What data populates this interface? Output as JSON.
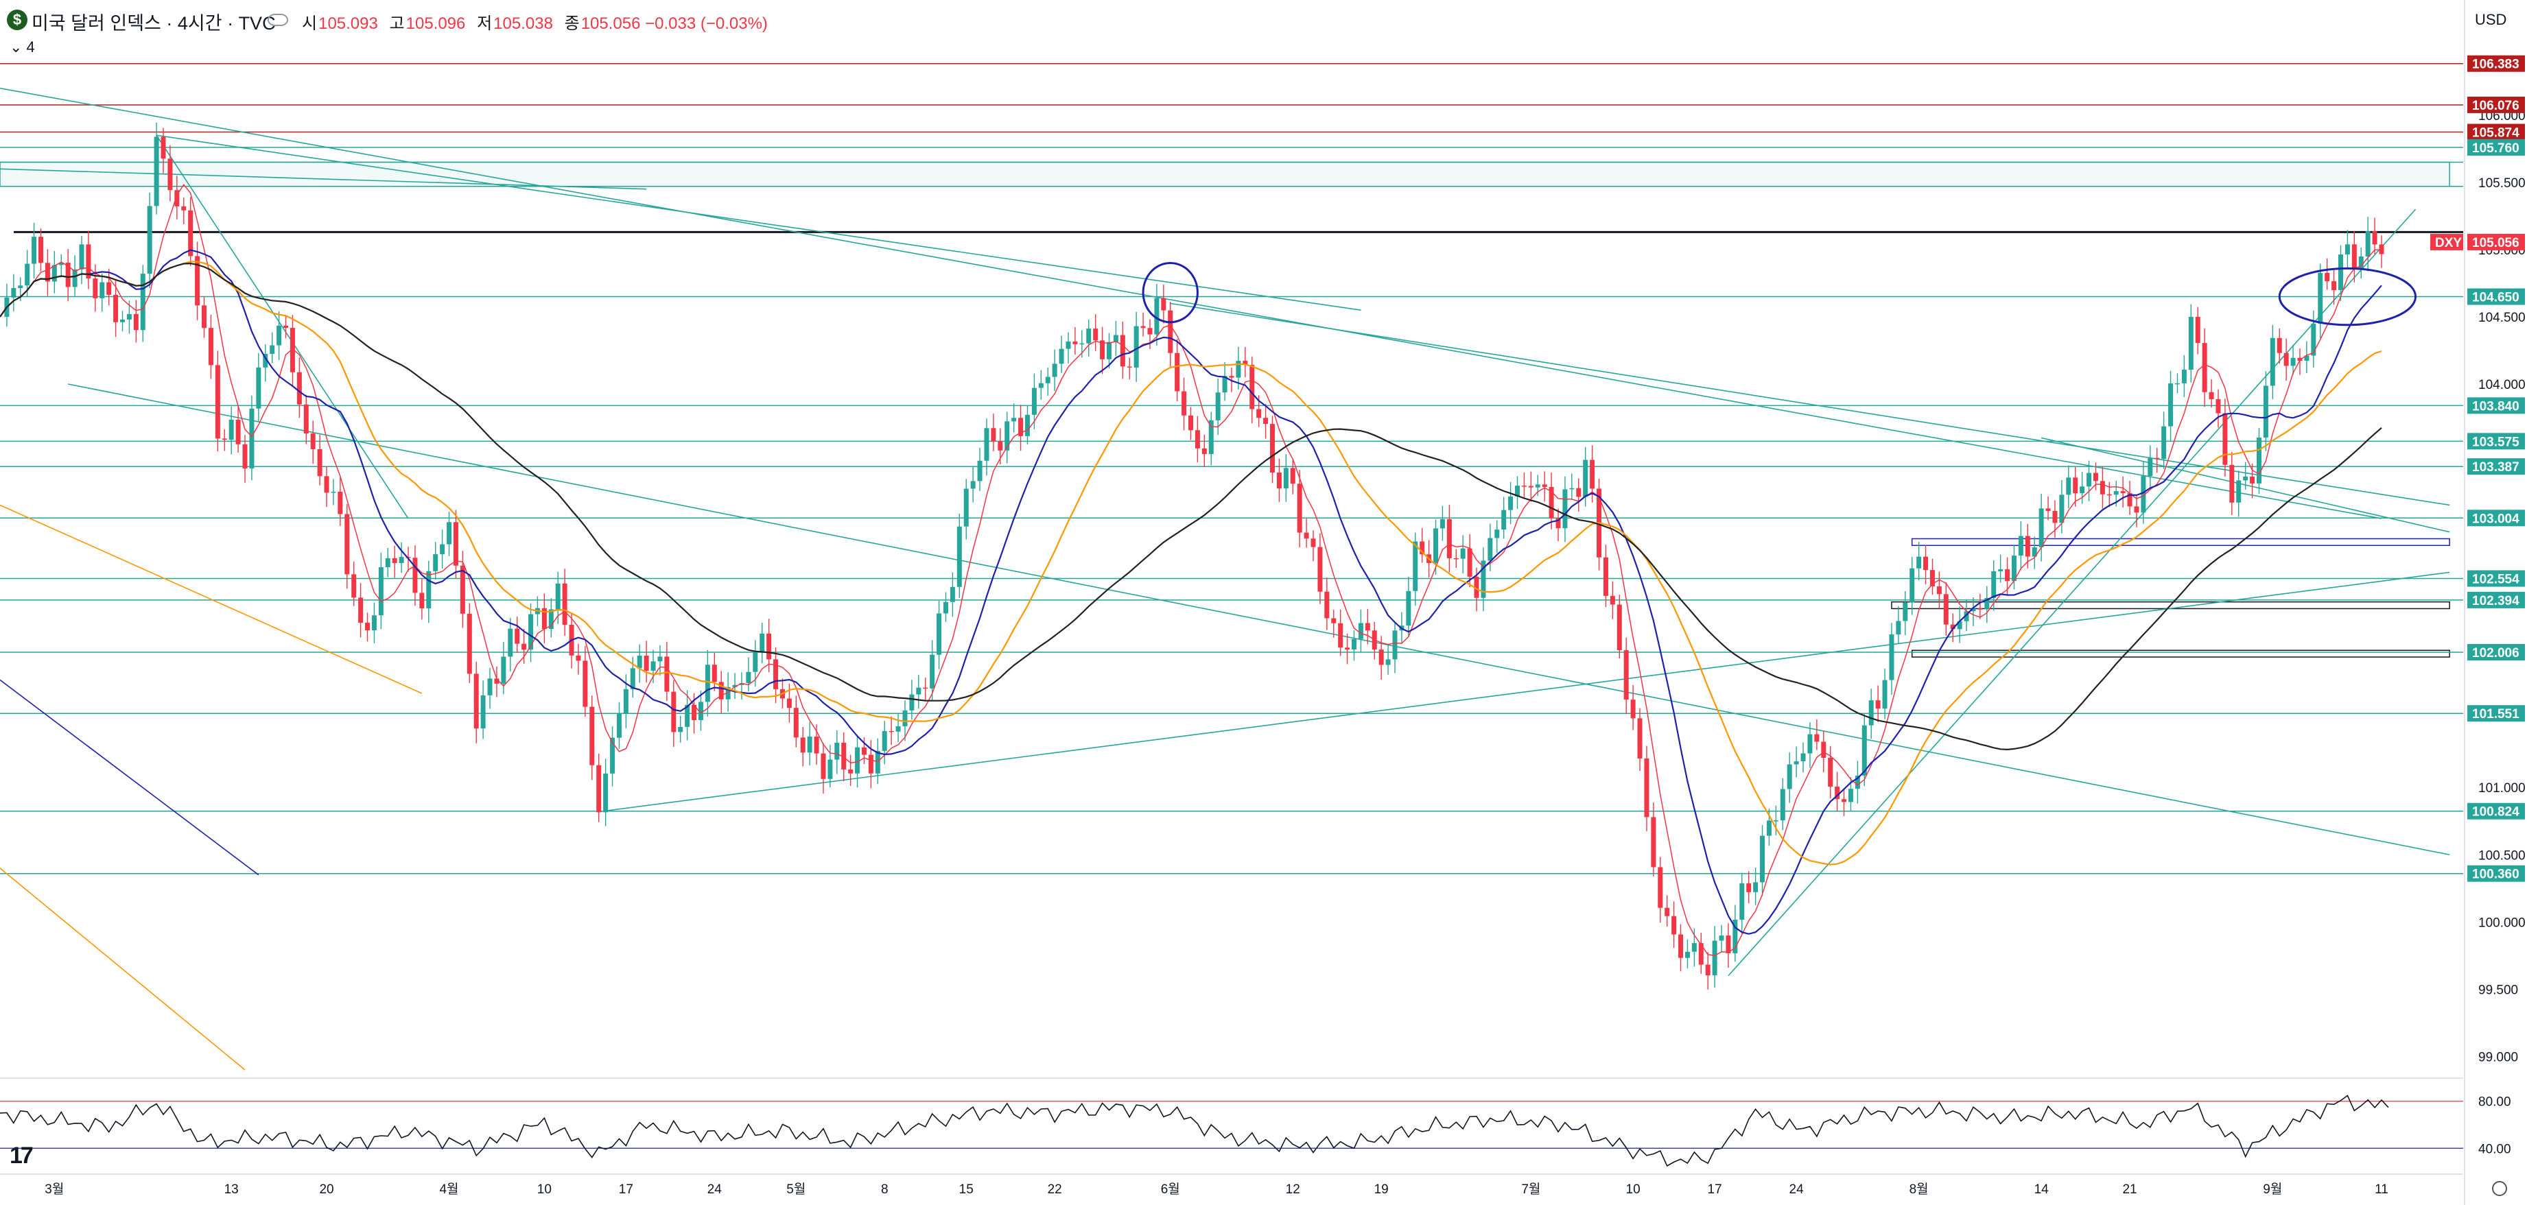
{
  "header": {
    "symbol_icon": "$",
    "title": "미국 달러 인덱스 · 4시간 · TVC",
    "ohlc": [
      {
        "k": "시",
        "v": "105.093"
      },
      {
        "k": "고",
        "v": "105.096"
      },
      {
        "k": "저",
        "v": "105.038"
      },
      {
        "k": "종",
        "v": "105.056 −0.033 (−0.03%)"
      }
    ],
    "interval_button": "⌄ 4",
    "currency": "USD"
  },
  "colors": {
    "up": "#26a69a",
    "down": "#f23645",
    "hline": "#26a69a",
    "redline": "#b71c1c",
    "ma_red": "#f23645",
    "ma_blue": "#1e22aa",
    "ma_orange": "#ff9800",
    "ma_black": "#222222"
  },
  "chart_data": [
    {
      "type": "line",
      "series_kind": "candlestick",
      "symbol": "DXY",
      "last_price": 105.056,
      "x_tick_labels": [
        "3월",
        "13",
        "20",
        "4월",
        "10",
        "17",
        "24",
        "5월",
        "8",
        "15",
        "22",
        "6월",
        "12",
        "19",
        "7월",
        "10",
        "17",
        "24",
        "8월",
        "14",
        "21",
        "9월",
        "11"
      ],
      "x_tick_bars": [
        8,
        34,
        48,
        66,
        80,
        92,
        105,
        117,
        130,
        142,
        155,
        172,
        190,
        203,
        225,
        240,
        252,
        264,
        282,
        300,
        313,
        334,
        350
      ],
      "y_tick_labels": [
        "99.000",
        "99.500",
        "100.000",
        "100.500",
        "101.000",
        "104.000",
        "104.500",
        "105.000",
        "105.500",
        "106.000"
      ],
      "y_ticks": [
        99.0,
        99.5,
        100.0,
        100.5,
        101.0,
        104.0,
        104.5,
        105.0,
        105.5,
        106.0
      ],
      "ylim": [
        98.9,
        106.55
      ],
      "bars_total": 352,
      "close_anchors": [
        [
          0,
          104.5
        ],
        [
          5,
          105.0
        ],
        [
          8,
          104.8
        ],
        [
          12,
          104.9
        ],
        [
          16,
          104.6
        ],
        [
          20,
          104.4
        ],
        [
          23,
          105.8
        ],
        [
          27,
          105.2
        ],
        [
          29,
          104.7
        ],
        [
          32,
          103.7
        ],
        [
          36,
          103.5
        ],
        [
          39,
          104.3
        ],
        [
          42,
          104.4
        ],
        [
          45,
          103.6
        ],
        [
          50,
          103.0
        ],
        [
          53,
          102.1
        ],
        [
          58,
          102.8
        ],
        [
          62,
          102.4
        ],
        [
          66,
          103.0
        ],
        [
          70,
          101.5
        ],
        [
          74,
          102.0
        ],
        [
          78,
          102.2
        ],
        [
          82,
          102.4
        ],
        [
          85,
          101.9
        ],
        [
          88,
          100.85
        ],
        [
          92,
          101.8
        ],
        [
          96,
          102.0
        ],
        [
          100,
          101.4
        ],
        [
          104,
          101.8
        ],
        [
          108,
          101.7
        ],
        [
          112,
          102.1
        ],
        [
          116,
          101.5
        ],
        [
          120,
          101.2
        ],
        [
          124,
          101.2
        ],
        [
          128,
          101.2
        ],
        [
          132,
          101.5
        ],
        [
          136,
          101.8
        ],
        [
          140,
          102.6
        ],
        [
          143,
          103.4
        ],
        [
          146,
          103.6
        ],
        [
          150,
          103.7
        ],
        [
          154,
          104.1
        ],
        [
          158,
          104.35
        ],
        [
          162,
          104.3
        ],
        [
          166,
          104.2
        ],
        [
          170,
          104.6
        ],
        [
          172,
          104.3
        ],
        [
          174,
          103.7
        ],
        [
          177,
          103.5
        ],
        [
          180,
          104.1
        ],
        [
          183,
          104.1
        ],
        [
          187,
          103.4
        ],
        [
          190,
          103.2
        ],
        [
          194,
          102.5
        ],
        [
          197,
          102.0
        ],
        [
          200,
          102.2
        ],
        [
          204,
          101.9
        ],
        [
          208,
          102.7
        ],
        [
          212,
          102.9
        ],
        [
          217,
          102.5
        ],
        [
          221,
          103.1
        ],
        [
          225,
          103.3
        ],
        [
          229,
          103.0
        ],
        [
          233,
          103.4
        ],
        [
          236,
          102.5
        ],
        [
          240,
          101.5
        ],
        [
          244,
          100.1
        ],
        [
          247,
          99.8
        ],
        [
          251,
          99.7
        ],
        [
          254,
          99.9
        ],
        [
          258,
          100.4
        ],
        [
          262,
          101.0
        ],
        [
          266,
          101.4
        ],
        [
          268,
          101.2
        ],
        [
          271,
          100.8
        ],
        [
          274,
          101.4
        ],
        [
          278,
          102.0
        ],
        [
          280,
          102.5
        ],
        [
          283,
          102.7
        ],
        [
          286,
          102.2
        ],
        [
          290,
          102.3
        ],
        [
          294,
          102.6
        ],
        [
          298,
          102.8
        ],
        [
          302,
          103.1
        ],
        [
          306,
          103.3
        ],
        [
          310,
          103.2
        ],
        [
          314,
          103.1
        ],
        [
          318,
          103.7
        ],
        [
          322,
          104.4
        ],
        [
          325,
          103.9
        ],
        [
          328,
          103.2
        ],
        [
          331,
          103.3
        ],
        [
          334,
          104.3
        ],
        [
          338,
          104.1
        ],
        [
          341,
          104.7
        ],
        [
          344,
          104.9
        ],
        [
          347,
          105.0
        ],
        [
          350,
          105.06
        ]
      ],
      "series": [
        {
          "kind": "ma",
          "color": "#f23645",
          "period": 6
        },
        {
          "kind": "ma",
          "color": "#1e22aa",
          "period": 14
        },
        {
          "kind": "ma",
          "color": "#ff9800",
          "period": 28
        },
        {
          "kind": "ma",
          "color": "#222222",
          "period": 60
        }
      ],
      "horizontal_levels": [
        {
          "price": 106.383,
          "color": "#b71c1c",
          "label": "106.383"
        },
        {
          "price": 106.076,
          "color": "#b71c1c",
          "label": "106.076"
        },
        {
          "price": 105.874,
          "color": "#b71c1c",
          "label": "105.874"
        },
        {
          "price": 105.76,
          "color": "#26a69a",
          "label": "105.760"
        },
        {
          "price": 105.65,
          "color": "#26a69a",
          "label": ""
        },
        {
          "price": 105.47,
          "color": "#26a69a",
          "label": ""
        },
        {
          "price": 104.65,
          "color": "#26a69a",
          "label": "104.650"
        },
        {
          "price": 103.84,
          "color": "#26a69a",
          "label": "103.840"
        },
        {
          "price": 103.575,
          "color": "#26a69a",
          "label": "103.575"
        },
        {
          "price": 103.387,
          "color": "#26a69a",
          "label": "103.387"
        },
        {
          "price": 103.004,
          "color": "#26a69a",
          "label": "103.004"
        },
        {
          "price": 102.554,
          "color": "#26a69a",
          "label": "102.554"
        },
        {
          "price": 102.394,
          "color": "#26a69a",
          "label": "102.394"
        },
        {
          "price": 102.006,
          "color": "#26a69a",
          "label": "102.006"
        },
        {
          "price": 101.551,
          "color": "#26a69a",
          "label": "101.551"
        },
        {
          "price": 100.824,
          "color": "#26a69a",
          "label": "100.824"
        },
        {
          "price": 100.36,
          "color": "#26a69a",
          "label": "100.360"
        }
      ],
      "resistance_line": {
        "price": 105.13,
        "color": "#131722"
      },
      "price_tag": {
        "label": "DXY",
        "value": "105.056",
        "color": "#f23645"
      },
      "trend_lines": [
        {
          "from": [
            0,
            106.2
          ],
          "to": [
            350,
            103.0
          ],
          "color": "#26a69a"
        },
        {
          "from": [
            23,
            105.85
          ],
          "to": [
            200,
            104.55
          ],
          "color": "#26a69a"
        },
        {
          "from": [
            0,
            105.6
          ],
          "to": [
            95,
            105.45
          ],
          "color": "#26a69a"
        },
        {
          "from": [
            23,
            105.85
          ],
          "to": [
            60,
            103.0
          ],
          "color": "#26a69a"
        },
        {
          "from": [
            10,
            104.0
          ],
          "to": [
            360,
            100.5
          ],
          "color": "#26a69a"
        },
        {
          "from": [
            172,
            104.6
          ],
          "to": [
            360,
            103.1
          ],
          "color": "#26a69a"
        },
        {
          "from": [
            300,
            103.6
          ],
          "to": [
            360,
            102.9
          ],
          "color": "#26a69a"
        },
        {
          "from": [
            88,
            100.82
          ],
          "to": [
            360,
            102.6
          ],
          "color": "#26a69a"
        },
        {
          "from": [
            254,
            99.6
          ],
          "to": [
            355,
            105.3
          ],
          "color": "#26a69a"
        },
        {
          "from": [
            0,
            103.1
          ],
          "to": [
            62,
            101.7
          ],
          "color": "#ff9800"
        },
        {
          "from": [
            0,
            100.4
          ],
          "to": [
            36,
            98.9
          ],
          "color": "#ff9800"
        },
        {
          "from": [
            0,
            101.8
          ],
          "to": [
            38,
            100.35
          ],
          "color": "#1e22aa"
        }
      ],
      "rectangles": [
        {
          "x1": 0,
          "y1": 105.65,
          "x2": 360,
          "y2": 105.47,
          "stroke": "#26a69a",
          "fill": "rgba(38,166,154,0.06)"
        },
        {
          "x1": 281,
          "y1": 102.85,
          "x2": 360,
          "y2": 102.8,
          "stroke": "#1e22aa"
        },
        {
          "x1": 278,
          "y1": 102.38,
          "x2": 360,
          "y2": 102.33,
          "stroke": "#131722"
        },
        {
          "x1": 281,
          "y1": 102.02,
          "x2": 360,
          "y2": 101.97,
          "stroke": "#131722"
        }
      ],
      "ellipses": [
        {
          "cx": 172,
          "cy": 104.68,
          "rx_bars": 4,
          "ry_price": 0.22,
          "color": "#1e22aa"
        },
        {
          "cx": 345,
          "cy": 104.65,
          "rx_bars": 10,
          "ry_price": 0.21,
          "color": "#1e22aa"
        }
      ]
    },
    {
      "type": "line",
      "series_kind": "oscillator",
      "y_tick_labels": [
        "80.00",
        "40.00"
      ],
      "y_ticks": [
        80,
        40
      ],
      "ylim": [
        25,
        95
      ],
      "upper_band": 80,
      "lower_band": 40,
      "anchors": [
        [
          0,
          70
        ],
        [
          8,
          64
        ],
        [
          16,
          58
        ],
        [
          23,
          78
        ],
        [
          30,
          45
        ],
        [
          40,
          50
        ],
        [
          50,
          42
        ],
        [
          60,
          55
        ],
        [
          70,
          40
        ],
        [
          80,
          62
        ],
        [
          88,
          35
        ],
        [
          95,
          60
        ],
        [
          105,
          50
        ],
        [
          115,
          55
        ],
        [
          125,
          45
        ],
        [
          135,
          60
        ],
        [
          145,
          72
        ],
        [
          155,
          70
        ],
        [
          165,
          75
        ],
        [
          172,
          72
        ],
        [
          180,
          50
        ],
        [
          190,
          42
        ],
        [
          200,
          45
        ],
        [
          210,
          58
        ],
        [
          220,
          65
        ],
        [
          230,
          60
        ],
        [
          240,
          38
        ],
        [
          247,
          28
        ],
        [
          252,
          35
        ],
        [
          258,
          70
        ],
        [
          265,
          55
        ],
        [
          275,
          70
        ],
        [
          285,
          72
        ],
        [
          295,
          66
        ],
        [
          305,
          70
        ],
        [
          315,
          60
        ],
        [
          322,
          75
        ],
        [
          330,
          40
        ],
        [
          338,
          65
        ],
        [
          344,
          80
        ],
        [
          350,
          76
        ]
      ]
    }
  ]
}
